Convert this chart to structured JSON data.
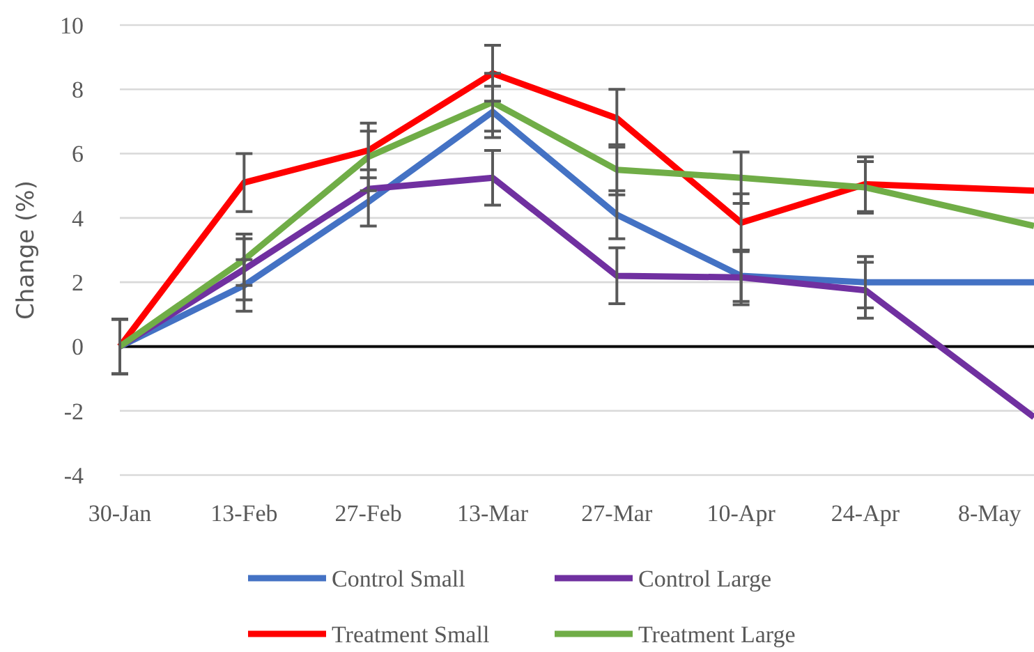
{
  "chart_data": {
    "type": "line",
    "ylabel": "Change (%)",
    "x": [
      "--01-30",
      "--02-13",
      "--02-27",
      "--03-13",
      "--03-27",
      "--04-10",
      "--04-24",
      "--05-13"
    ],
    "xlim": [
      "--01-30",
      "--05-13"
    ],
    "xticks": [
      {
        "value": "--01-30",
        "label": "30-Jan"
      },
      {
        "value": "--02-13",
        "label": "13-Feb"
      },
      {
        "value": "--02-27",
        "label": "27-Feb"
      },
      {
        "value": "--03-13",
        "label": "13-Mar"
      },
      {
        "value": "--03-27",
        "label": "27-Mar"
      },
      {
        "value": "--04-10",
        "label": "10-Apr"
      },
      {
        "value": "--04-24",
        "label": "24-Apr"
      },
      {
        "value": "--05-08",
        "label": "8-May"
      }
    ],
    "ylim": [
      -4,
      10
    ],
    "yticks": [
      -4,
      -2,
      0,
      2,
      4,
      6,
      8,
      10
    ],
    "grid": "y",
    "ref_lines": [
      {
        "axis": "y",
        "value": 0,
        "color": "#000000"
      }
    ],
    "legend": "bottom",
    "line_style": "solid",
    "marker": "none",
    "series": [
      {
        "name": "Control Small",
        "color": "#4472c4",
        "values": [
          0,
          1.9,
          4.5,
          7.3,
          4.1,
          2.2,
          2.0,
          2.0
        ],
        "errors": [
          0.85,
          0.8,
          0.75,
          0.8,
          0.75,
          0.8,
          0.8,
          null
        ]
      },
      {
        "name": "Control Large",
        "color": "#7030a0",
        "values": [
          0,
          2.4,
          4.9,
          5.25,
          2.2,
          2.15,
          1.75,
          -2.2
        ],
        "errors": [
          0.85,
          0.95,
          null,
          0.85,
          0.87,
          0.85,
          0.87,
          null
        ]
      },
      {
        "name": "Treatment Small",
        "color": "#ff0000",
        "values": [
          0,
          5.1,
          6.1,
          8.5,
          7.1,
          3.85,
          5.05,
          4.85
        ],
        "errors": [
          0.85,
          0.9,
          0.6,
          0.87,
          0.9,
          0.9,
          0.85,
          null
        ]
      },
      {
        "name": "Treatment Large",
        "color": "#70ad47",
        "values": [
          0,
          2.7,
          5.9,
          7.6,
          5.5,
          5.25,
          4.95,
          3.75
        ],
        "errors": [
          0.85,
          0.8,
          1.05,
          0.9,
          0.78,
          0.8,
          0.8,
          null
        ]
      }
    ]
  }
}
